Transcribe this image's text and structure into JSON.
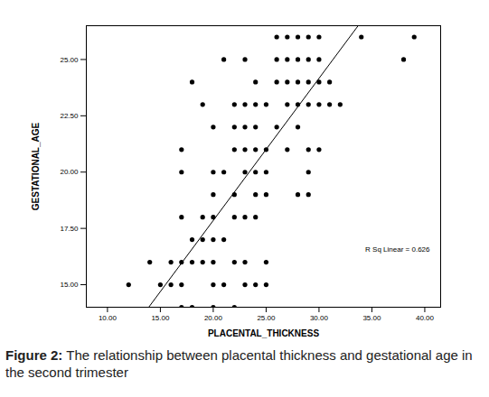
{
  "chart_data": {
    "type": "scatter",
    "x_label": "PLACENTAL_THICKNESS",
    "y_label": "GESTATIONAL_AGE",
    "annotation": "R Sq Linear = 0.626",
    "caption_label": "Figure 2:",
    "caption": "The relationship between placental thickness and gestational age in the second trimester",
    "color": "#000000",
    "marker": "circle",
    "xlim": [
      8,
      41.5
    ],
    "ylim": [
      14,
      26.5
    ],
    "xticks": [
      {
        "value": 10,
        "label": "10.00"
      },
      {
        "value": 15,
        "label": "15.00"
      },
      {
        "value": 20,
        "label": "20.00"
      },
      {
        "value": 25,
        "label": "25.00"
      },
      {
        "value": 30,
        "label": "30.00"
      },
      {
        "value": 35,
        "label": "35.00"
      },
      {
        "value": 40,
        "label": "40.00"
      }
    ],
    "yticks": [
      {
        "value": 15,
        "label": "15.00"
      },
      {
        "value": 17.5,
        "label": "17.50"
      },
      {
        "value": 20,
        "label": "20.00"
      },
      {
        "value": 22.5,
        "label": "22.50"
      },
      {
        "value": 25,
        "label": "25.00"
      }
    ],
    "x": [
      26,
      27,
      28,
      29,
      30,
      34,
      39,
      21,
      23,
      26,
      27,
      28,
      29,
      30,
      38,
      18,
      24,
      26,
      27,
      28,
      29,
      30,
      31,
      19,
      22,
      23,
      24,
      25,
      27,
      28,
      29,
      30,
      31,
      32,
      20,
      22,
      23,
      24,
      26,
      28,
      17,
      22,
      23,
      24,
      25,
      27,
      29,
      30,
      17,
      20,
      21,
      23,
      24,
      25,
      29,
      20,
      22,
      24,
      25,
      28,
      29,
      17,
      19,
      20,
      22,
      23,
      24,
      18,
      19,
      20,
      21,
      14,
      16,
      17,
      18,
      19,
      20,
      22,
      23,
      25,
      12,
      15,
      16,
      17,
      20,
      21,
      23,
      24,
      25,
      17,
      18,
      20,
      22
    ],
    "values": [
      26,
      26,
      26,
      26,
      26,
      26,
      26,
      25,
      25,
      25,
      25,
      25,
      25,
      25,
      25,
      24,
      24,
      24,
      24,
      24,
      24,
      24,
      24,
      23,
      23,
      23,
      23,
      23,
      23,
      23,
      23,
      23,
      23,
      23,
      22,
      22,
      22,
      22,
      22,
      22,
      21,
      21,
      21,
      21,
      21,
      21,
      21,
      21,
      20,
      20,
      20,
      20,
      20,
      20,
      20,
      19,
      19,
      19,
      19,
      19,
      19,
      18,
      18,
      18,
      18,
      18,
      18,
      17,
      17,
      17,
      17,
      16,
      16,
      16,
      16,
      16,
      16,
      16,
      16,
      16,
      15,
      15,
      15,
      15,
      15,
      15,
      15,
      15,
      15,
      14,
      14,
      14,
      14
    ],
    "fit_line": {
      "x": [
        13.9,
        33.7
      ],
      "values": [
        14,
        26.5
      ]
    }
  }
}
